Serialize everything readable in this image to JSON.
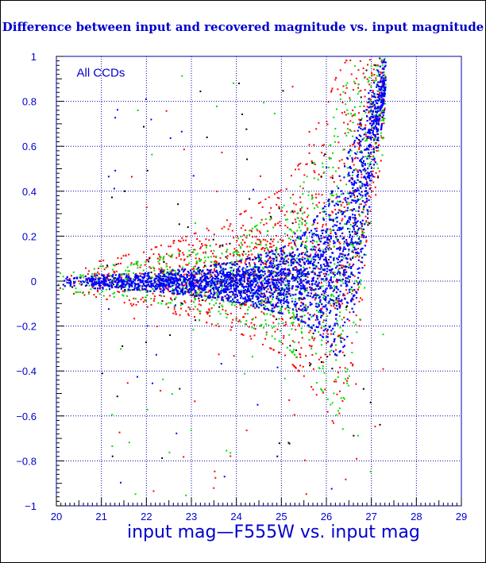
{
  "colors": {
    "title": "#0000cc",
    "axis_text": "#0000cc",
    "grid": "#0000aa",
    "series_blue": "#0000ff",
    "series_green": "#00dd00",
    "series_red": "#ff0000",
    "series_black": "#000000"
  },
  "chart_data": {
    "type": "scatter",
    "title": "Difference between input and recovered magnitude vs. input magnitude",
    "xlabel": "input mag—F555W vs. input mag",
    "ylabel": "",
    "annotation": "All CCDs",
    "xlim": [
      20,
      29
    ],
    "ylim": [
      -1,
      1
    ],
    "grid": true,
    "x_ticks": [
      20,
      21,
      22,
      23,
      24,
      25,
      26,
      27,
      28,
      29
    ],
    "x_tick_labels": [
      "20",
      "21",
      "22",
      "23",
      "24",
      "25",
      "26",
      "27",
      "28",
      "29"
    ],
    "y_ticks": [
      -1,
      -0.8,
      -0.6,
      -0.4,
      -0.2,
      0,
      0.2,
      0.4,
      0.6,
      0.8,
      1
    ],
    "y_tick_labels": [
      "−1",
      "−0.8",
      "−0.6",
      "−0.4",
      "−0.2",
      "0",
      "0.2",
      "0.4",
      "0.6",
      "0.8",
      "1"
    ],
    "series": [
      {
        "color": "#0000ff",
        "envelope": {
          "x": [
            20.0,
            21.0,
            22.0,
            23.0,
            24.0,
            25.0,
            25.5,
            26.0,
            26.2,
            26.4,
            26.6,
            26.8,
            27.0,
            27.3
          ],
          "y_low": [
            -0.02,
            -0.03,
            -0.04,
            -0.06,
            -0.09,
            -0.14,
            -0.18,
            -0.26,
            -0.33,
            -0.28,
            -0.12,
            0.08,
            0.45,
            0.8
          ],
          "y_high": [
            0.02,
            0.03,
            0.04,
            0.06,
            0.09,
            0.15,
            0.22,
            0.35,
            0.45,
            0.55,
            0.62,
            0.75,
            0.9,
            1.0
          ]
        }
      },
      {
        "color": "#00dd00",
        "envelope": {
          "x": [
            20.0,
            21.0,
            22.0,
            23.0,
            24.0,
            25.0,
            25.5,
            26.0,
            26.2,
            26.4,
            26.6,
            26.8,
            27.0,
            27.3
          ],
          "y_low": [
            -0.03,
            -0.05,
            -0.07,
            -0.1,
            -0.14,
            -0.22,
            -0.3,
            -0.42,
            -0.48,
            -0.4,
            -0.2,
            0.0,
            0.4,
            0.75
          ],
          "y_high": [
            0.03,
            0.06,
            0.08,
            0.12,
            0.16,
            0.28,
            0.38,
            0.55,
            0.65,
            0.75,
            0.85,
            0.92,
            0.98,
            1.0
          ]
        }
      },
      {
        "color": "#ff0000",
        "envelope": {
          "x": [
            20.0,
            21.0,
            22.0,
            23.0,
            24.0,
            25.0,
            25.5,
            26.0,
            26.2,
            26.4,
            26.6,
            26.8,
            27.0,
            27.3
          ],
          "y_low": [
            -0.04,
            -0.06,
            -0.09,
            -0.13,
            -0.18,
            -0.26,
            -0.34,
            -0.46,
            -0.52,
            -0.42,
            -0.22,
            0.0,
            0.35,
            0.7
          ],
          "y_high": [
            0.05,
            0.08,
            0.12,
            0.18,
            0.25,
            0.35,
            0.48,
            0.68,
            0.78,
            0.85,
            0.92,
            0.97,
            1.0,
            1.0
          ]
        }
      },
      {
        "color": "#000000",
        "envelope": {
          "x": [
            20.0,
            22.0,
            24.0,
            25.0,
            26.0,
            26.5,
            27.0,
            27.3
          ],
          "y_low": [
            -0.03,
            -0.06,
            -0.12,
            -0.2,
            -0.35,
            -0.2,
            0.3,
            0.7
          ],
          "y_high": [
            0.04,
            0.08,
            0.15,
            0.25,
            0.5,
            0.75,
            0.95,
            1.0
          ]
        }
      }
    ]
  }
}
